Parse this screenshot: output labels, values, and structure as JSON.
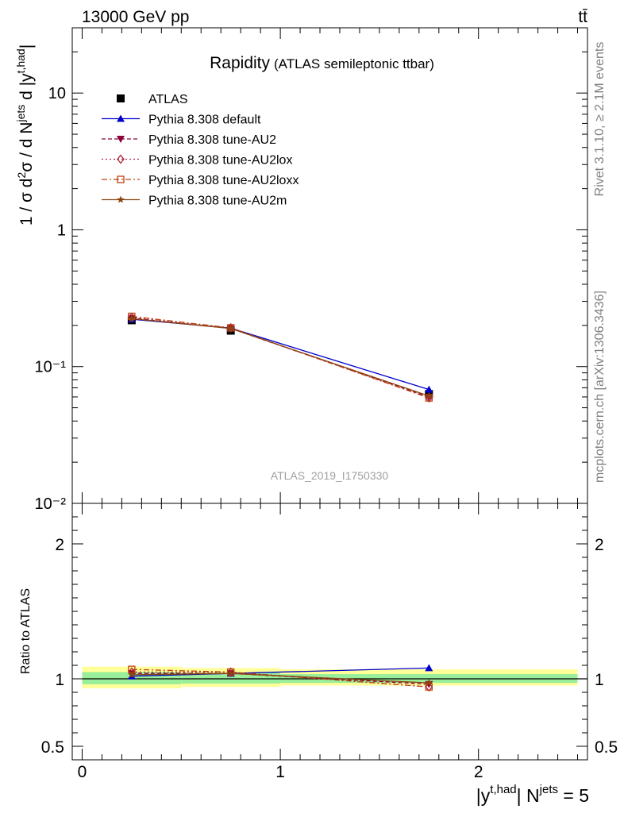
{
  "header": {
    "left": "13000 GeV pp",
    "right": "tt̄"
  },
  "side_labels": {
    "rivet": "Rivet 3.1.10, ≥ 2.1M events",
    "mcplots": "mcplots.cern.ch [arXiv:1306.3436]"
  },
  "watermark": "ATLAS_2019_I1750330",
  "chart_data": [
    {
      "type": "line",
      "panel": "main",
      "title": "Rapidity",
      "subtitle": "(ATLAS semileptonic ttbar)",
      "ylabel": "1 / σ d²σ / d N^jets d |y^t,had|",
      "yscale": "log",
      "ylim": [
        0.01,
        30
      ],
      "xlim": [
        -0.05,
        2.55
      ],
      "yticks": [
        "10⁻²",
        "10⁻¹",
        "1",
        "10"
      ],
      "yticks_values": [
        0.01,
        0.1,
        1,
        10
      ],
      "legend_position": "top-left",
      "x": [
        0.25,
        0.75,
        1.75
      ],
      "series": [
        {
          "name": "ATLAS",
          "color": "#000000",
          "marker": "square",
          "values": [
            0.218,
            0.183,
            0.063
          ]
        },
        {
          "name": "Pythia 8.308 default",
          "color": "#0000cc",
          "marker": "triangle-up",
          "values": [
            0.222,
            0.191,
            0.068
          ]
        },
        {
          "name": "Pythia 8.308 tune-AU2",
          "color": "#8b0036",
          "marker": "triangle-down",
          "values": [
            0.226,
            0.19,
            0.06
          ]
        },
        {
          "name": "Pythia 8.308 tune-AU2lox",
          "color": "#b0203c",
          "marker": "diamond-open",
          "values": [
            0.229,
            0.192,
            0.059
          ]
        },
        {
          "name": "Pythia 8.308 tune-AU2loxx",
          "color": "#c04010",
          "marker": "square-open",
          "values": [
            0.233,
            0.192,
            0.059
          ]
        },
        {
          "name": "Pythia 8.308 tune-AU2m",
          "color": "#8b4513",
          "marker": "star",
          "values": [
            0.224,
            0.19,
            0.061
          ]
        }
      ]
    },
    {
      "type": "line",
      "panel": "ratio",
      "ylabel": "Ratio to ATLAS",
      "xlabel": "|y^t,had| N^jets = 5",
      "ylim": [
        0.4,
        2.3
      ],
      "yticks": [
        "0.5",
        "1",
        "2"
      ],
      "yticks_values": [
        0.5,
        1,
        2
      ],
      "xticks": [
        "0",
        "1",
        "2"
      ],
      "xticks_values": [
        0,
        1,
        2
      ],
      "band": {
        "x_edges": [
          0,
          0.5,
          1.0,
          2.5
        ],
        "yellow": [
          [
            0.93,
            1.09
          ],
          [
            0.94,
            1.08
          ],
          [
            0.95,
            1.07
          ]
        ],
        "green": [
          [
            0.96,
            1.05
          ],
          [
            0.965,
            1.045
          ],
          [
            0.97,
            1.035
          ]
        ]
      },
      "x": [
        0.25,
        0.75,
        1.75
      ],
      "series": [
        {
          "name": "Pythia 8.308 default",
          "color": "#0000cc",
          "marker": "triangle-up",
          "values": [
            1.02,
            1.04,
            1.08
          ]
        },
        {
          "name": "Pythia 8.308 tune-AU2",
          "color": "#8b0036",
          "marker": "triangle-down",
          "values": [
            1.04,
            1.04,
            0.96
          ]
        },
        {
          "name": "Pythia 8.308 tune-AU2lox",
          "color": "#b0203c",
          "marker": "diamond-open",
          "values": [
            1.05,
            1.05,
            0.94
          ]
        },
        {
          "name": "Pythia 8.308 tune-AU2loxx",
          "color": "#c04010",
          "marker": "square-open",
          "values": [
            1.07,
            1.05,
            0.94
          ]
        },
        {
          "name": "Pythia 8.308 tune-AU2m",
          "color": "#8b4513",
          "marker": "star",
          "values": [
            1.03,
            1.04,
            0.97
          ]
        }
      ]
    }
  ]
}
